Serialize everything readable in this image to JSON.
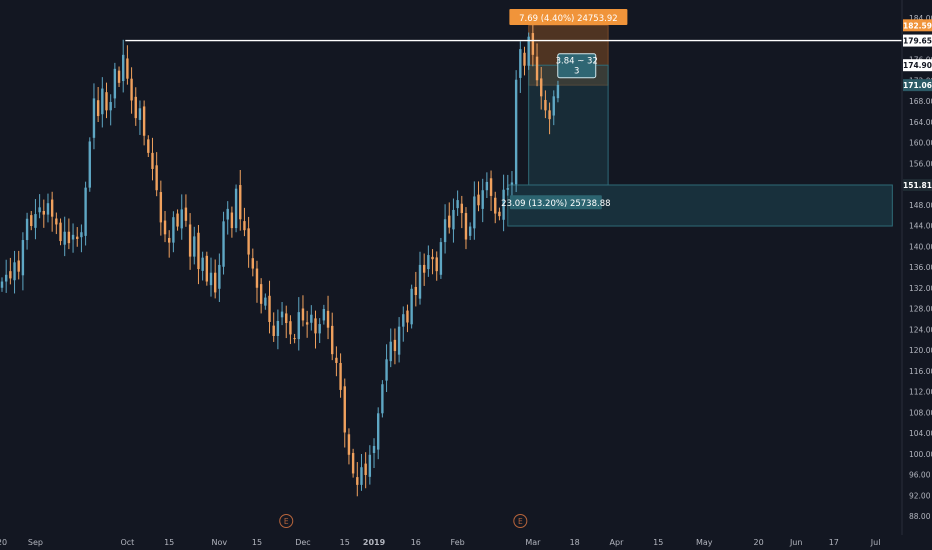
{
  "colors": {
    "background": "#131722",
    "up": "#5fa7c4",
    "down": "#f0a15e",
    "axis_text": "#b2b5be",
    "resistance_line": "#ffffff",
    "target_zone": "#1e4652",
    "stop_zone": "#5a3a22",
    "tag_orange": "#f0943a",
    "tag_teal": "#2c5a66",
    "earnings": "#b8653c"
  },
  "chart_data": {
    "type": "candlestick",
    "title": "",
    "xlabel": "",
    "ylabel": "",
    "ylim": [
      86,
      185
    ],
    "y_ticks": [
      88,
      92,
      96,
      100,
      104,
      108,
      112,
      116,
      120,
      124,
      128,
      132,
      136,
      140,
      144,
      148,
      152,
      156,
      160,
      164,
      168,
      172,
      176,
      180,
      184
    ],
    "x_ticks": [
      {
        "label": "20",
        "bar": 0
      },
      {
        "label": "Sep",
        "bar": 8
      },
      {
        "label": "Oct",
        "bar": 30
      },
      {
        "label": "15",
        "bar": 40
      },
      {
        "label": "Nov",
        "bar": 52
      },
      {
        "label": "15",
        "bar": 61
      },
      {
        "label": "Dec",
        "bar": 72
      },
      {
        "label": "15",
        "bar": 82
      },
      {
        "label": "2019",
        "bar": 89
      },
      {
        "label": "16",
        "bar": 99
      },
      {
        "label": "Feb",
        "bar": 109
      },
      {
        "label": "Mar",
        "bar": 127
      },
      {
        "label": "18",
        "bar": 137
      },
      {
        "label": "Apr",
        "bar": 147
      },
      {
        "label": "15",
        "bar": 157
      },
      {
        "label": "May",
        "bar": 168
      },
      {
        "label": "20",
        "bar": 181
      },
      {
        "label": "Jun",
        "bar": 190
      },
      {
        "label": "17",
        "bar": 199
      },
      {
        "label": "Jul",
        "bar": 209
      }
    ],
    "closes": [
      133.2,
      134.5,
      133.8,
      136.9,
      135.1,
      141.2,
      145.3,
      143.9,
      146.2,
      147.5,
      146.1,
      148.3,
      145.7,
      144.2,
      141.0,
      142.8,
      140.6,
      142.2,
      141.4,
      142.7,
      151.3,
      160.2,
      168.5,
      165.1,
      170.4,
      166.2,
      167.8,
      174.2,
      171.5,
      176.9,
      172.3,
      168.1,
      164.7,
      166.6,
      161.3,
      158.0,
      154.9,
      150.8,
      144.6,
      142.3,
      140.7,
      145.6,
      143.8,
      147.1,
      144.9,
      138.0,
      141.9,
      135.6,
      137.8,
      133.2,
      134.9,
      131.1,
      136.4,
      144.8,
      147.2,
      143.5,
      151.1,
      145.2,
      143.1,
      138.4,
      135.7,
      132.0,
      128.9,
      130.1,
      125.4,
      122.7,
      125.6,
      127.4,
      125.2,
      123.0,
      122.1,
      127.3,
      125.7,
      124.9,
      126.8,
      123.2,
      125.0,
      127.9,
      124.3,
      119.2,
      117.5,
      112.3,
      104.1,
      99.8,
      96.2,
      94.0,
      97.4,
      95.9,
      99.8,
      101.5,
      107.8,
      113.4,
      118.2,
      121.6,
      119.8,
      124.5,
      126.9,
      125.3,
      131.8,
      130.6,
      136.4,
      134.9,
      138.3,
      137.5,
      135.2,
      140.8,
      145.2,
      143.6,
      147.0,
      148.9,
      146.4,
      141.3,
      143.8,
      149.6,
      147.9,
      150.8,
      152.4,
      149.7,
      146.3,
      145.8,
      150.9,
      151.2,
      152.3,
      172.1,
      178.0,
      174.8,
      180.4,
      176.9,
      172.0,
      168.9,
      166.2,
      164.5,
      168.9,
      171.1
    ],
    "resistance_line": 179.65,
    "zones": [
      {
        "from_bar": 126,
        "to_bar": 145,
        "from_price": 171.06,
        "to_price": 182.59,
        "kind": "stop"
      },
      {
        "from_bar": 126,
        "to_bar": 145,
        "from_price": 151.81,
        "to_price": 174.9,
        "kind": "target"
      },
      {
        "from_bar": 121,
        "to_bar": 213,
        "from_price": 143.9,
        "to_price": 151.81,
        "kind": "target"
      }
    ],
    "price_labels": [
      {
        "price": 182.59,
        "text": "182.59",
        "style": "orange"
      },
      {
        "price": 179.65,
        "text": "179.65",
        "style": "white"
      },
      {
        "price": 174.9,
        "text": "174.90",
        "style": "white"
      },
      {
        "price": 171.06,
        "text": "171.06",
        "style": "teal"
      },
      {
        "price": 151.81,
        "text": "151.81",
        "style": "dark"
      }
    ],
    "annotations": [
      {
        "text": "7.69 (4.40%) 24753.92",
        "bar": 135.5,
        "price": 184.0,
        "style": "orange"
      },
      {
        "text": "3.84 ~ 32",
        "text2": "3",
        "bar": 137.5,
        "price": 174.8,
        "style": "teal-box"
      },
      {
        "text": "23.09 (13.20%) 25738.88",
        "bar": 132.5,
        "price": 148.3,
        "style": "teal"
      }
    ],
    "earnings_markers": [
      {
        "label": "E",
        "bar": 68
      },
      {
        "label": "E",
        "bar": 124
      }
    ]
  }
}
